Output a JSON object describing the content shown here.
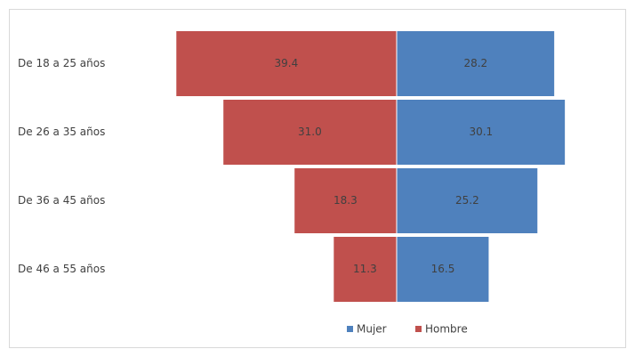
{
  "chart_data": {
    "type": "bar",
    "orientation": "diverging",
    "categories": [
      "De 18 a 25 años",
      "De 26 a 35 años",
      "De 36 a 45 años",
      "De 46 a 55 años"
    ],
    "series": [
      {
        "name": "Mujer",
        "color": "#4f81bd",
        "side": "right",
        "values": [
          28.2,
          30.1,
          25.2,
          16.5
        ],
        "value_labels": [
          "28.2",
          "30.1",
          "25.2",
          "16.5"
        ]
      },
      {
        "name": "Hombre",
        "color": "#c0504d",
        "side": "left",
        "values": [
          39.4,
          31.0,
          18.3,
          11.3
        ],
        "value_labels": [
          "39.4",
          "31.0",
          "18.3",
          "11.3"
        ]
      }
    ],
    "legend": "bottom"
  }
}
